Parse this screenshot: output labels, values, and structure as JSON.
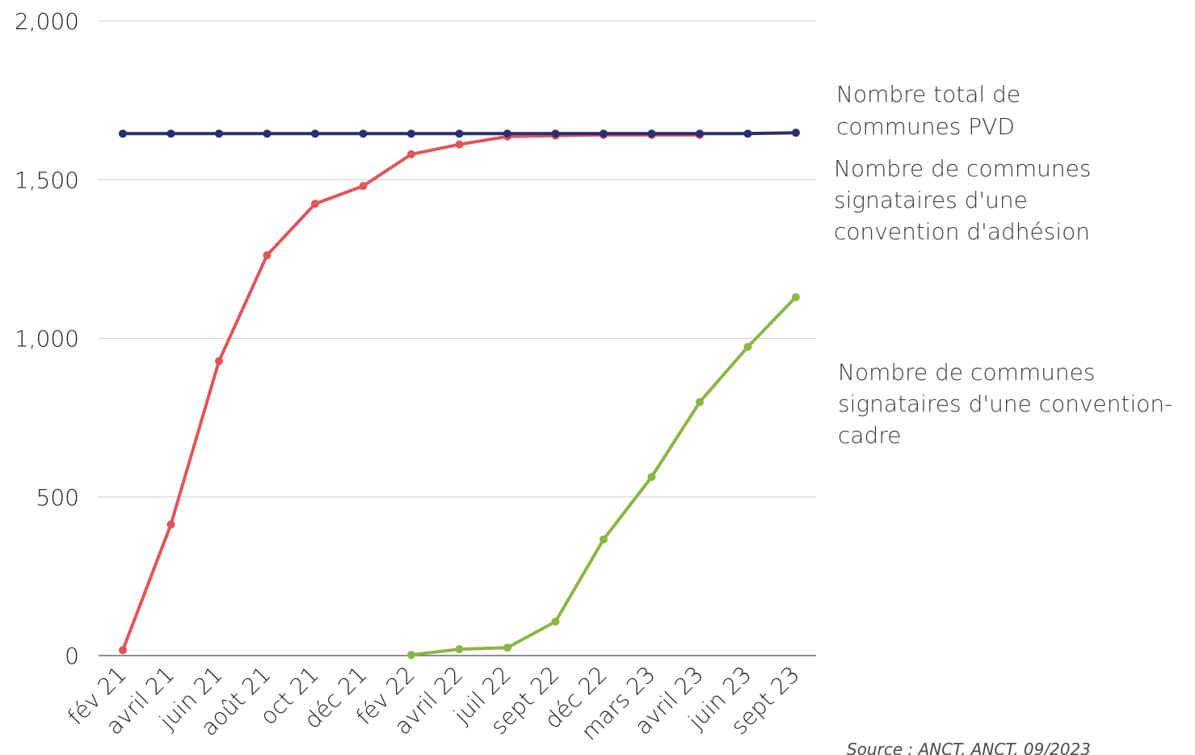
{
  "chart_data": {
    "type": "line",
    "title": "",
    "xlabel": "",
    "ylabel": "",
    "categories": [
      "fév 21",
      "avril 21",
      "juin 21",
      "août 21",
      "oct 21",
      "déc 21",
      "fév 22",
      "avril 22",
      "juil 22",
      "sept 22",
      "déc 22",
      "mars 23",
      "avril 23",
      "juin 23",
      "sept 23"
    ],
    "ylim": [
      0,
      2000
    ],
    "yticks": [
      0,
      500,
      1000,
      1500,
      2000
    ],
    "ytick_labels": [
      "0",
      "500",
      "1,000",
      "1,500",
      "2,000"
    ],
    "grid": true,
    "legend": "right",
    "series": [
      {
        "name": "Nombre total de communes PVD",
        "color": "#2b2d6e",
        "values": [
          1645,
          1645,
          1645,
          1645,
          1645,
          1645,
          1645,
          1645,
          1645,
          1645,
          1645,
          1645,
          1645,
          1645,
          1648
        ],
        "label_lines": [
          "Nombre total de",
          "communes PVD"
        ]
      },
      {
        "name": "Nombre de communes signataires d'une convention d'adhésion",
        "color": "#e0555a",
        "values": [
          17,
          413,
          928,
          1262,
          1424,
          1480,
          1580,
          1611,
          1636,
          1639,
          1641,
          1641,
          1641,
          null,
          null
        ],
        "label_lines": [
          "Nombre de communes",
          "signataires d'une",
          "convention d'adhésion"
        ]
      },
      {
        "name": "Nombre de communes signataires d'une convention-cadre",
        "color": "#8db543",
        "values": [
          null,
          null,
          null,
          null,
          null,
          null,
          2,
          20,
          25,
          107,
          366,
          563,
          799,
          973,
          1130
        ],
        "label_lines": [
          "Nombre de communes",
          "signataires d'une convention-",
          "cadre"
        ]
      }
    ]
  },
  "source": "Source : ANCT, ANCT, 09/2023"
}
